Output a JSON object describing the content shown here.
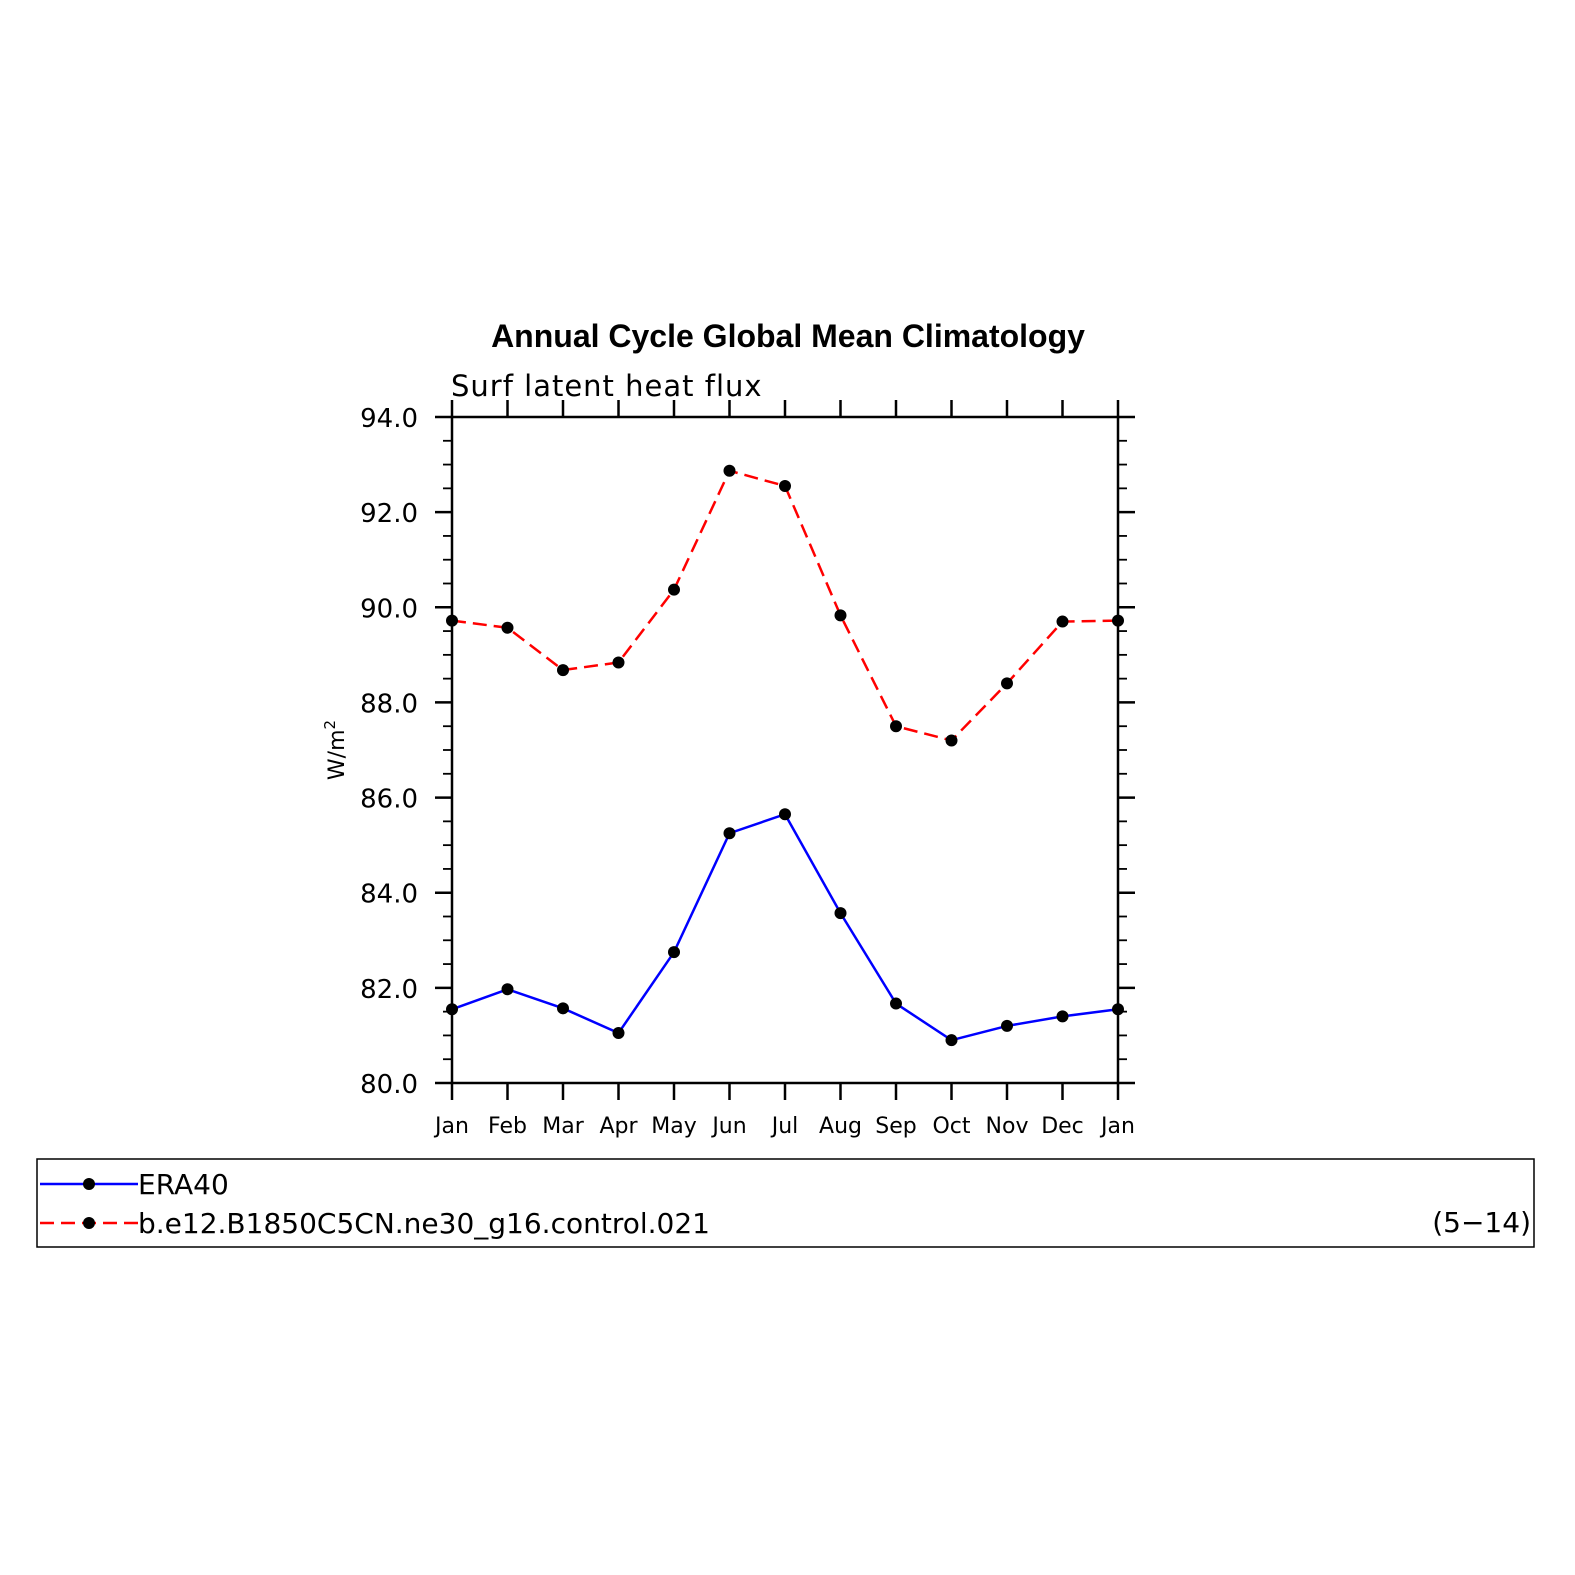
{
  "chart_data": {
    "type": "line",
    "title": "Annual Cycle Global Mean Climatology",
    "subtitle": "Surf latent heat flux",
    "ylabel": "W/m",
    "ylabel_superscript": "2",
    "ylim": [
      80.0,
      94.0
    ],
    "yticks": [
      "80.0",
      "82.0",
      "84.0",
      "86.0",
      "88.0",
      "90.0",
      "92.0",
      "94.0"
    ],
    "categories": [
      "Jan",
      "Feb",
      "Mar",
      "Apr",
      "May",
      "Jun",
      "Jul",
      "Aug",
      "Sep",
      "Oct",
      "Nov",
      "Dec",
      "Jan"
    ],
    "series": [
      {
        "name": "ERA40",
        "color": "#0000ff",
        "line_style": "solid",
        "marker": "filled-circle",
        "values": [
          81.55,
          81.97,
          81.57,
          81.05,
          82.75,
          85.25,
          85.65,
          83.57,
          81.67,
          80.9,
          81.2,
          81.4,
          81.55
        ]
      },
      {
        "name": "b.e12.B1850C5CN.ne30_g16.control.021",
        "color": "#ff0000",
        "line_style": "dashed",
        "marker": "filled-circle",
        "values": [
          89.72,
          89.57,
          88.68,
          88.84,
          90.37,
          92.87,
          92.55,
          89.83,
          87.5,
          87.2,
          88.4,
          89.7,
          89.72
        ]
      }
    ],
    "legend_note": "(5−14)",
    "legend_placement": "bottom",
    "grid": false
  }
}
